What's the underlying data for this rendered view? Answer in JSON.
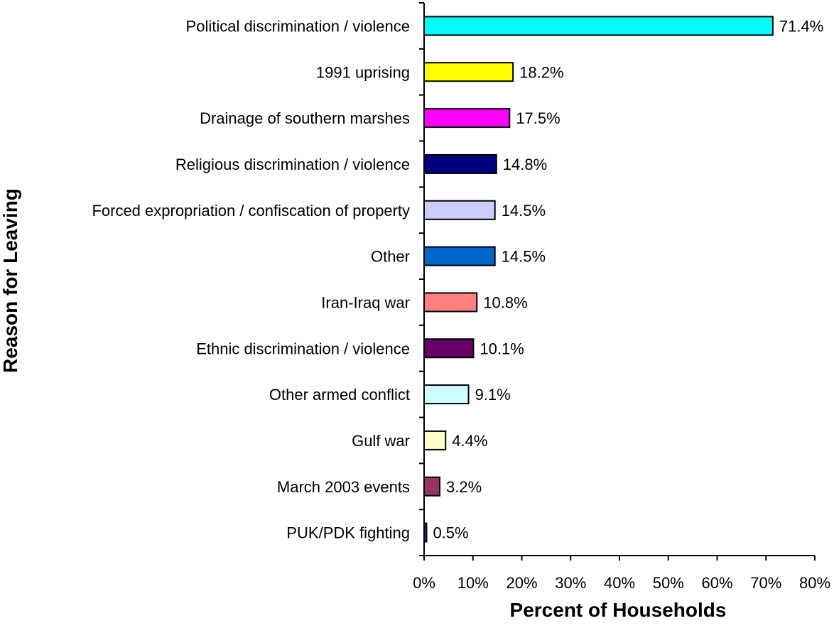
{
  "chart_data": {
    "type": "bar",
    "orientation": "horizontal",
    "xlabel": "Percent of Households",
    "ylabel": "Reason for Leaving",
    "xlim": [
      0,
      80
    ],
    "x_ticks": [
      0,
      10,
      20,
      30,
      40,
      50,
      60,
      70,
      80
    ],
    "tick_suffix": "%",
    "grid": false,
    "categories": [
      "Political discrimination / violence",
      "1991 uprising",
      "Drainage of southern marshes",
      "Religious discrimination / violence",
      "Forced expropriation / confiscation of property",
      "Other",
      "Iran-Iraq war",
      "Ethnic discrimination / violence",
      "Other armed conflict",
      "Gulf war",
      "March 2003 events",
      "PUK/PDK fighting"
    ],
    "values": [
      71.4,
      18.2,
      17.5,
      14.8,
      14.5,
      14.5,
      10.8,
      10.1,
      9.1,
      4.4,
      3.2,
      0.5
    ],
    "value_labels": [
      "71.4%",
      "18.2%",
      "17.5%",
      "14.8%",
      "14.5%",
      "14.5%",
      "10.8%",
      "10.1%",
      "9.1%",
      "4.4%",
      "3.2%",
      "0.5%"
    ],
    "colors": [
      "#00FFFF",
      "#FFFF00",
      "#FF00FF",
      "#000080",
      "#CCCCFF",
      "#0066CC",
      "#FF8080",
      "#660066",
      "#CCFFFF",
      "#FFFFCC",
      "#993366",
      "#333399"
    ]
  }
}
